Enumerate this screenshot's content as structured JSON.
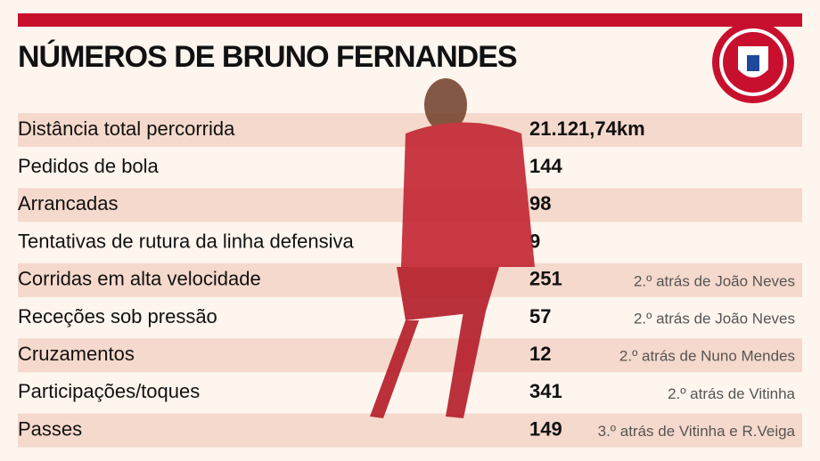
{
  "header": {
    "title": "NÚMEROS DE BRUNO FERNANDES"
  },
  "table": {
    "rows": [
      {
        "label": "Distância total percorrida",
        "value": "21.121,74km"
      },
      {
        "label": "Pedidos de bola",
        "value": 144
      },
      {
        "label": "Arrancadas",
        "value": 98
      },
      {
        "label": "Tentativas de rutura da linha defensiva",
        "value": 9
      },
      {
        "label": "Corridas em alta velocidade",
        "value": 251,
        "note": "2.º atrás de João Neves"
      },
      {
        "label": "Receções sob pressão",
        "value": 57,
        "note": "2.º atrás de João Neves"
      },
      {
        "label": "Cruzamentos",
        "value": 12,
        "note": "2.º atrás de Nuno Mendes"
      },
      {
        "label": "Participações/toques",
        "value": 341,
        "note": "2.º atrás de Vitinha"
      },
      {
        "label": "Passes",
        "value": 149,
        "note": "3.º atrás de Vitinha e R.Veiga"
      }
    ]
  }
}
